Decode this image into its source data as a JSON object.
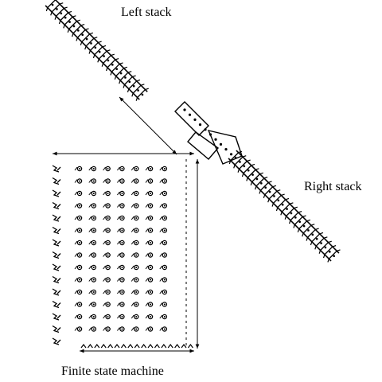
{
  "labels": {
    "left_stack": "Left stack",
    "right_stack": "Right stack",
    "fsm": "Finite state machine"
  },
  "colors": {
    "ink": "#000000",
    "background": "#ffffff"
  },
  "structure": {
    "grid_rows": 14,
    "grid_cols": 7,
    "stack_cells_left": 22,
    "stack_cells_right": 24
  }
}
